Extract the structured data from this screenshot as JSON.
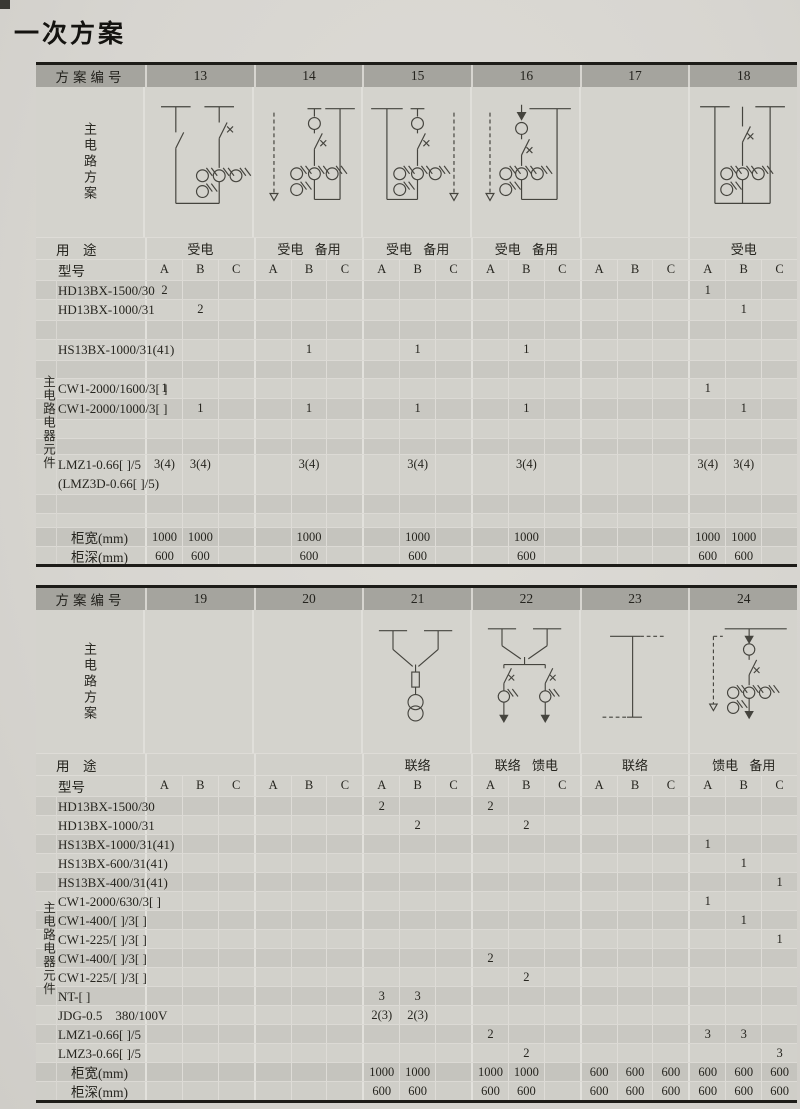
{
  "page_title": "一次方案",
  "tables": [
    {
      "header_label": "方案编号",
      "schemes": [
        "13",
        "14",
        "15",
        "16",
        "17",
        "18"
      ],
      "diagrams": [
        "two-incoming-switch-ct",
        "incoming-breaker-ct-spare-left",
        "incoming-breaker-ct-spare-right",
        "incoming-feed-breaker-ct-spare-left",
        "",
        "double-bus-breaker-ct"
      ],
      "circuit_label": "主电路方案",
      "usage_label": "用　途",
      "usages": [
        "受电",
        "受电 备用",
        "受电 备用",
        "受电 备用",
        "",
        "受电"
      ],
      "model_label": "型号",
      "subcols": [
        "A",
        "B",
        "C"
      ],
      "side_label": "主电路电器元件",
      "rows": [
        {
          "label": "HD13BX-1500/30",
          "values": [
            "2",
            "",
            "",
            "",
            "",
            "",
            "",
            "",
            "",
            "",
            "",
            "",
            "",
            "",
            "",
            "1",
            "",
            ""
          ]
        },
        {
          "label": "HD13BX-1000/31",
          "values": [
            "",
            "2",
            "",
            "",
            "",
            "",
            "",
            "",
            "",
            "",
            "",
            "",
            "",
            "",
            "",
            "",
            "1",
            ""
          ]
        },
        {
          "label": "",
          "values": [
            "",
            "",
            "",
            "",
            "",
            "",
            "",
            "",
            "",
            "",
            "",
            "",
            "",
            "",
            "",
            "",
            "",
            ""
          ]
        },
        {
          "label": "HS13BX-1000/31(41)",
          "values": [
            "",
            "",
            "",
            "",
            "1",
            "",
            "",
            "1",
            "",
            "",
            "1",
            "",
            "",
            "",
            "",
            "",
            "",
            ""
          ]
        },
        {
          "label": "",
          "values": [
            "",
            "",
            "",
            "",
            "",
            "",
            "",
            "",
            "",
            "",
            "",
            "",
            "",
            "",
            "",
            "",
            "",
            ""
          ]
        },
        {
          "label": "CW1-2000/1600/3[ ]",
          "values": [
            "1",
            "",
            "",
            "",
            "",
            "",
            "",
            "",
            "",
            "",
            "",
            "",
            "",
            "",
            "",
            "1",
            "",
            ""
          ]
        },
        {
          "label": "CW1-2000/1000/3[ ]",
          "values": [
            "",
            "1",
            "",
            "",
            "1",
            "",
            "",
            "1",
            "",
            "",
            "1",
            "",
            "",
            "",
            "",
            "",
            "1",
            ""
          ]
        },
        {
          "label": "",
          "values": [
            "",
            "",
            "",
            "",
            "",
            "",
            "",
            "",
            "",
            "",
            "",
            "",
            "",
            "",
            "",
            "",
            "",
            ""
          ]
        },
        {
          "label": "",
          "values": [
            "",
            "",
            "",
            "",
            "",
            "",
            "",
            "",
            "",
            "",
            "",
            "",
            "",
            "",
            "",
            "",
            "",
            ""
          ]
        },
        {
          "label": "LMZ1-0.66[ ]/5",
          "label2": "(LMZ3D-0.66[ ]/5)",
          "values": [
            "3(4)",
            "3(4)",
            "",
            "",
            "3(4)",
            "",
            "",
            "3(4)",
            "",
            "",
            "3(4)",
            "",
            "",
            "",
            "",
            "3(4)",
            "3(4)",
            ""
          ]
        },
        {
          "label": "",
          "values": [
            "",
            "",
            "",
            "",
            "",
            "",
            "",
            "",
            "",
            "",
            "",
            "",
            "",
            "",
            "",
            "",
            "",
            ""
          ]
        },
        {
          "label": "",
          "values": [
            "",
            "",
            "",
            "",
            "",
            "",
            "",
            "",
            "",
            "",
            "",
            "",
            "",
            "",
            "",
            "",
            "",
            ""
          ]
        }
      ],
      "footer_rows": [
        {
          "label": "柜宽(mm)",
          "values": [
            "1000",
            "1000",
            "",
            "",
            "1000",
            "",
            "",
            "1000",
            "",
            "",
            "1000",
            "",
            "",
            "",
            "",
            "1000",
            "1000",
            ""
          ]
        },
        {
          "label": "柜深(mm)",
          "values": [
            "600",
            "600",
            "",
            "",
            "600",
            "",
            "",
            "600",
            "",
            "",
            "600",
            "",
            "",
            "",
            "",
            "600",
            "600",
            ""
          ]
        }
      ]
    },
    {
      "header_label": "方案编号",
      "schemes": [
        "19",
        "20",
        "21",
        "22",
        "23",
        "24"
      ],
      "diagrams": [
        "",
        "",
        "bus-tie-fuse-transformer",
        "bus-tie-two-feeders",
        "bus-riser",
        "feeder-breaker-ct-spare"
      ],
      "circuit_label": "主电路方案",
      "usage_label": "用　途",
      "usages": [
        "",
        "",
        "联络",
        "联络 馈电",
        "联络",
        "馈电 备用"
      ],
      "model_label": "型号",
      "subcols": [
        "A",
        "B",
        "C"
      ],
      "side_label": "主电路电器元件",
      "rows": [
        {
          "label": "HD13BX-1500/30",
          "values": [
            "",
            "",
            "",
            "",
            "",
            "",
            "2",
            "",
            "",
            "2",
            "",
            "",
            "",
            "",
            "",
            "",
            "",
            ""
          ]
        },
        {
          "label": "HD13BX-1000/31",
          "values": [
            "",
            "",
            "",
            "",
            "",
            "",
            "",
            "2",
            "",
            "",
            "2",
            "",
            "",
            "",
            "",
            "",
            "",
            ""
          ]
        },
        {
          "label": "HS13BX-1000/31(41)",
          "values": [
            "",
            "",
            "",
            "",
            "",
            "",
            "",
            "",
            "",
            "",
            "",
            "",
            "",
            "",
            "",
            "1",
            "",
            ""
          ]
        },
        {
          "label": "HS13BX-600/31(41)",
          "values": [
            "",
            "",
            "",
            "",
            "",
            "",
            "",
            "",
            "",
            "",
            "",
            "",
            "",
            "",
            "",
            "",
            "1",
            ""
          ]
        },
        {
          "label": "HS13BX-400/31(41)",
          "values": [
            "",
            "",
            "",
            "",
            "",
            "",
            "",
            "",
            "",
            "",
            "",
            "",
            "",
            "",
            "",
            "",
            "",
            "1"
          ]
        },
        {
          "label": "CW1-2000/630/3[ ]",
          "values": [
            "",
            "",
            "",
            "",
            "",
            "",
            "",
            "",
            "",
            "",
            "",
            "",
            "",
            "",
            "",
            "1",
            "",
            ""
          ]
        },
        {
          "label": "CW1-400/[ ]/3[ ]",
          "values": [
            "",
            "",
            "",
            "",
            "",
            "",
            "",
            "",
            "",
            "",
            "",
            "",
            "",
            "",
            "",
            "",
            "1",
            ""
          ]
        },
        {
          "label": "CW1-225/[ ]/3[ ]",
          "values": [
            "",
            "",
            "",
            "",
            "",
            "",
            "",
            "",
            "",
            "",
            "",
            "",
            "",
            "",
            "",
            "",
            "",
            "1"
          ]
        },
        {
          "label": "CW1-400/[ ]/3[ ]",
          "values": [
            "",
            "",
            "",
            "",
            "",
            "",
            "",
            "",
            "",
            "2",
            "",
            "",
            "",
            "",
            "",
            "",
            "",
            ""
          ]
        },
        {
          "label": "CW1-225/[ ]/3[ ]",
          "values": [
            "",
            "",
            "",
            "",
            "",
            "",
            "",
            "",
            "",
            "",
            "2",
            "",
            "",
            "",
            "",
            "",
            "",
            ""
          ]
        },
        {
          "label": "NT-[ ]",
          "values": [
            "",
            "",
            "",
            "",
            "",
            "",
            "3",
            "3",
            "",
            "",
            "",
            "",
            "",
            "",
            "",
            "",
            "",
            ""
          ]
        },
        {
          "label": "JDG-0.5　380/100V",
          "values": [
            "",
            "",
            "",
            "",
            "",
            "",
            "2(3)",
            "2(3)",
            "",
            "",
            "",
            "",
            "",
            "",
            "",
            "",
            "",
            ""
          ]
        },
        {
          "label": "LMZ1-0.66[ ]/5",
          "values": [
            "",
            "",
            "",
            "",
            "",
            "",
            "",
            "",
            "",
            "2",
            "",
            "",
            "",
            "",
            "",
            "3",
            "3",
            ""
          ]
        },
        {
          "label": "LMZ3-0.66[ ]/5",
          "values": [
            "",
            "",
            "",
            "",
            "",
            "",
            "",
            "",
            "",
            "",
            "2",
            "",
            "",
            "",
            "",
            "",
            "",
            "3"
          ]
        }
      ],
      "footer_rows": [
        {
          "label": "柜宽(mm)",
          "values": [
            "",
            "",
            "",
            "",
            "",
            "",
            "1000",
            "1000",
            "",
            "1000",
            "1000",
            "",
            "600",
            "600",
            "600",
            "600",
            "600",
            "600"
          ]
        },
        {
          "label": "柜深(mm)",
          "values": [
            "",
            "",
            "",
            "",
            "",
            "",
            "600",
            "600",
            "",
            "600",
            "600",
            "",
            "600",
            "600",
            "600",
            "600",
            "600",
            "600"
          ]
        }
      ]
    }
  ]
}
